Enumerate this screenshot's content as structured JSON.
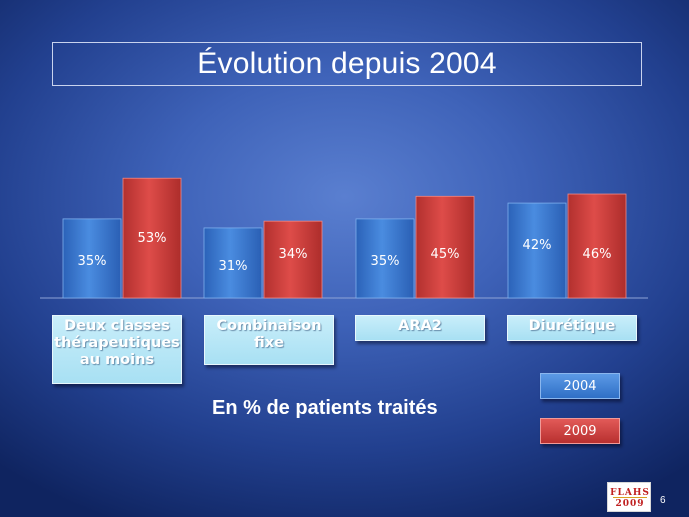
{
  "title": "Évolution depuis 2004",
  "subtitle": "En % de patients traités",
  "page_number": "6",
  "logo": {
    "line1": "FLAHS",
    "line2": "2009"
  },
  "colors": {
    "series_2004": "#3a78cf",
    "series_2009": "#cc3a37",
    "category_box": "#b5e6f6"
  },
  "chart_data": {
    "type": "bar",
    "categories": [
      "Deux classes\nthérapeutiques\nau moins",
      "Combinaison\nfixe",
      "ARA2",
      "Diurétique"
    ],
    "series": [
      {
        "name": "2004",
        "values": [
          35,
          31,
          35,
          42
        ],
        "labels": [
          "35%",
          "31%",
          "35%",
          "42%"
        ]
      },
      {
        "name": "2009",
        "values": [
          53,
          34,
          45,
          46
        ],
        "labels": [
          "53%",
          "34%",
          "45%",
          "46%"
        ]
      }
    ],
    "unit": "%",
    "legend": "right",
    "grid": false
  }
}
